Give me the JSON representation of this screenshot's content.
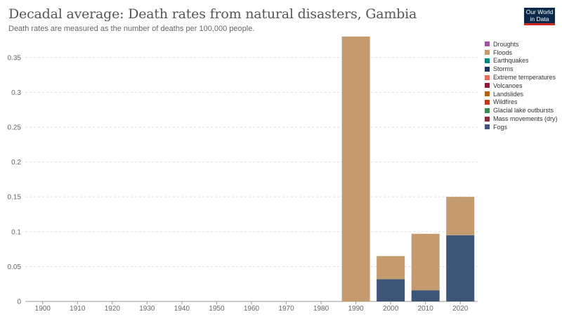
{
  "header": {
    "title": "Decadal average: Death rates from natural disasters, Gambia",
    "subtitle": "Death rates are measured as the number of deaths per 100,000 people."
  },
  "logo": {
    "line1": "Our World",
    "line2": "in Data"
  },
  "chart_data": {
    "type": "bar",
    "stacked": true,
    "title": "Decadal average: Death rates from natural disasters, Gambia",
    "subtitle": "Death rates are measured as the number of deaths per 100,000 people.",
    "categories": [
      "1900",
      "1910",
      "1920",
      "1930",
      "1940",
      "1950",
      "1960",
      "1970",
      "1980",
      "1990",
      "2000",
      "2010",
      "2020"
    ],
    "ylim": [
      0,
      0.38
    ],
    "yticks": [
      0,
      0.05,
      0.1,
      0.15,
      0.2,
      0.25,
      0.3,
      0.35
    ],
    "ytick_labels": [
      "0",
      "0.05",
      "0.1",
      "0.15",
      "0.2",
      "0.25",
      "0.3",
      "0.35"
    ],
    "grid": true,
    "legend_position": "right",
    "series": [
      {
        "name": "Droughts",
        "color": "#a2559c",
        "values": [
          0,
          0,
          0,
          0,
          0,
          0,
          0,
          0,
          0,
          0,
          0,
          0,
          0
        ]
      },
      {
        "name": "Floods",
        "color": "#c49a6e",
        "values": [
          0,
          0,
          0,
          0,
          0,
          0,
          0,
          0,
          0,
          0.38,
          0.033,
          0.081,
          0.055
        ]
      },
      {
        "name": "Earthquakes",
        "color": "#00847e",
        "values": [
          0,
          0,
          0,
          0,
          0,
          0,
          0,
          0,
          0,
          0,
          0,
          0,
          0
        ]
      },
      {
        "name": "Storms",
        "color": "#1c3654",
        "values": [
          0,
          0,
          0,
          0,
          0,
          0,
          0,
          0,
          0,
          0,
          0,
          0,
          0
        ]
      },
      {
        "name": "Extreme temperatures",
        "color": "#e56e5a",
        "values": [
          0,
          0,
          0,
          0,
          0,
          0,
          0,
          0,
          0,
          0,
          0,
          0,
          0
        ]
      },
      {
        "name": "Volcanoes",
        "color": "#8a1c3a",
        "values": [
          0,
          0,
          0,
          0,
          0,
          0,
          0,
          0,
          0,
          0,
          0,
          0,
          0
        ]
      },
      {
        "name": "Landslides",
        "color": "#b16214",
        "values": [
          0,
          0,
          0,
          0,
          0,
          0,
          0,
          0,
          0,
          0,
          0,
          0,
          0
        ]
      },
      {
        "name": "Wildfires",
        "color": "#bc3a1e",
        "values": [
          0,
          0,
          0,
          0,
          0,
          0,
          0,
          0,
          0,
          0,
          0,
          0,
          0
        ]
      },
      {
        "name": "Glacial lake outbursts",
        "color": "#3c8a4f",
        "values": [
          0,
          0,
          0,
          0,
          0,
          0,
          0,
          0,
          0,
          0,
          0,
          0,
          0
        ]
      },
      {
        "name": "Mass movements (dry)",
        "color": "#883039",
        "values": [
          0,
          0,
          0,
          0,
          0,
          0,
          0,
          0,
          0,
          0,
          0,
          0,
          0
        ]
      },
      {
        "name": "Fogs",
        "color": "#3c5579",
        "values": [
          0,
          0,
          0,
          0,
          0,
          0,
          0,
          0,
          0,
          0,
          0.032,
          0.016,
          0.095
        ]
      }
    ],
    "stack_order_bottom_to_top": [
      "Fogs",
      "Floods"
    ]
  }
}
